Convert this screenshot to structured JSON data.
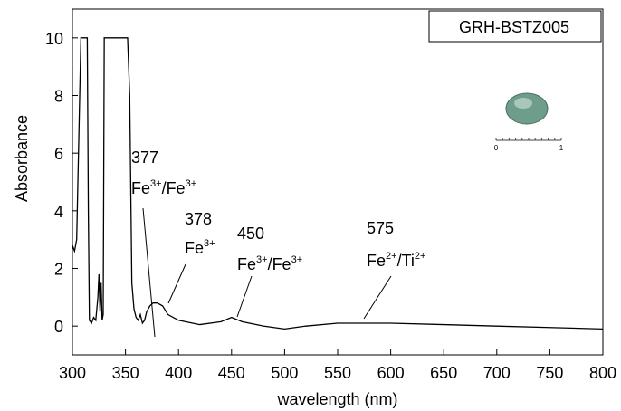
{
  "chart_data": {
    "type": "line",
    "title": "GRH-BSTZ005",
    "x_label": "wavelength (nm)",
    "y_label": "Absorbance",
    "x": [
      300,
      302,
      304,
      306,
      308,
      314,
      315,
      316,
      318,
      320,
      322,
      324,
      325,
      326,
      327,
      328,
      329,
      330,
      352,
      354,
      356,
      358,
      360,
      362,
      364,
      366,
      368,
      370,
      373,
      376,
      380,
      385,
      390,
      400,
      420,
      440,
      450,
      460,
      480,
      500,
      520,
      550,
      600,
      650,
      700,
      750,
      800
    ],
    "series": [
      {
        "color": "#000000",
        "values": [
          2.8,
          2.6,
          3.0,
          6.5,
          10,
          10,
          4,
          0.2,
          0.1,
          0.3,
          0.2,
          1.0,
          1.8,
          0.5,
          1.5,
          0.2,
          0.4,
          10,
          10,
          8,
          1.5,
          0.6,
          0.3,
          0.2,
          0.4,
          0.1,
          0.2,
          0.5,
          0.7,
          0.8,
          0.8,
          0.7,
          0.4,
          0.2,
          0.05,
          0.15,
          0.3,
          0.15,
          0,
          -0.1,
          0,
          0.1,
          0.1,
          0.05,
          0,
          -0.05,
          -0.1
        ]
      }
    ],
    "xlim": [
      300,
      800
    ],
    "xticks": [
      300,
      350,
      400,
      450,
      500,
      550,
      600,
      650,
      700,
      750,
      800
    ],
    "ylim": [
      -1,
      11
    ],
    "yticks": [
      0,
      2,
      4,
      6,
      8,
      10
    ],
    "grid": false,
    "annotations": [
      {
        "number": "377",
        "parts": [
          {
            "text": "Fe",
            "sup": false
          },
          {
            "text": "3+",
            "sup": true
          },
          {
            "text": "/Fe",
            "sup": false
          },
          {
            "text": "3+",
            "sup": true
          }
        ]
      },
      {
        "number": "378",
        "parts": [
          {
            "text": "Fe",
            "sup": false
          },
          {
            "text": "3+",
            "sup": true
          }
        ]
      },
      {
        "number": "450",
        "parts": [
          {
            "text": "Fe",
            "sup": false
          },
          {
            "text": "3+",
            "sup": true
          },
          {
            "text": "/Fe",
            "sup": false
          },
          {
            "text": "3+",
            "sup": true
          }
        ]
      },
      {
        "number": "575",
        "parts": [
          {
            "text": "Fe",
            "sup": false
          },
          {
            "text": "2+",
            "sup": true
          },
          {
            "text": "/Ti",
            "sup": false
          },
          {
            "text": "2+",
            "sup": true
          }
        ]
      }
    ],
    "scale_labels": [
      "0",
      "1"
    ]
  }
}
